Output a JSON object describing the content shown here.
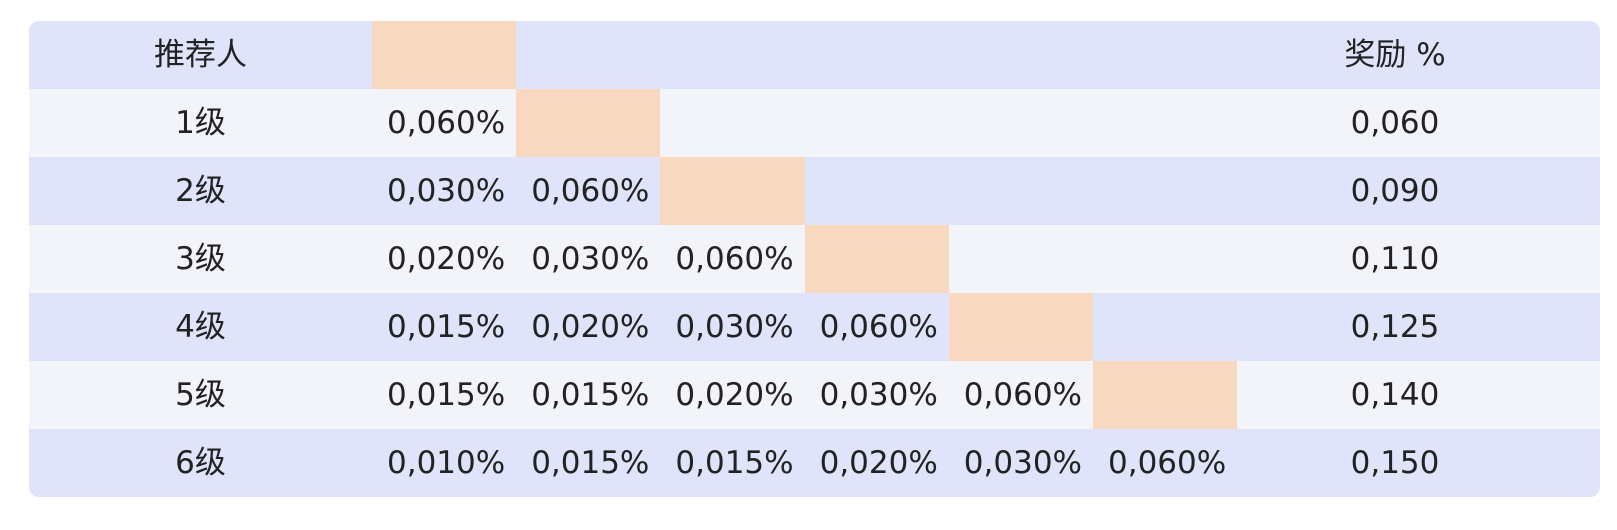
{
  "table": {
    "header": {
      "label": "推荐人",
      "reward": "奖励 %"
    },
    "rows": [
      {
        "label": "1级",
        "cells": [
          "0,060%"
        ],
        "reward": "0,060"
      },
      {
        "label": "2级",
        "cells": [
          "0,030%",
          "0,060%"
        ],
        "reward": "0,090"
      },
      {
        "label": "3级",
        "cells": [
          "0,020%",
          "0,030%",
          "0,060%"
        ],
        "reward": "0,110"
      },
      {
        "label": "4级",
        "cells": [
          "0,015%",
          "0,020%",
          "0,030%",
          "0,060%"
        ],
        "reward": "0,125"
      },
      {
        "label": "5级",
        "cells": [
          "0,015%",
          "0,015%",
          "0,020%",
          "0,030%",
          "0,060%"
        ],
        "reward": "0,140"
      },
      {
        "label": "6级",
        "cells": [
          "0,010%",
          "0,015%",
          "0,015%",
          "0,020%",
          "0,030%",
          "0,060%"
        ],
        "reward": "0,150"
      }
    ]
  }
}
